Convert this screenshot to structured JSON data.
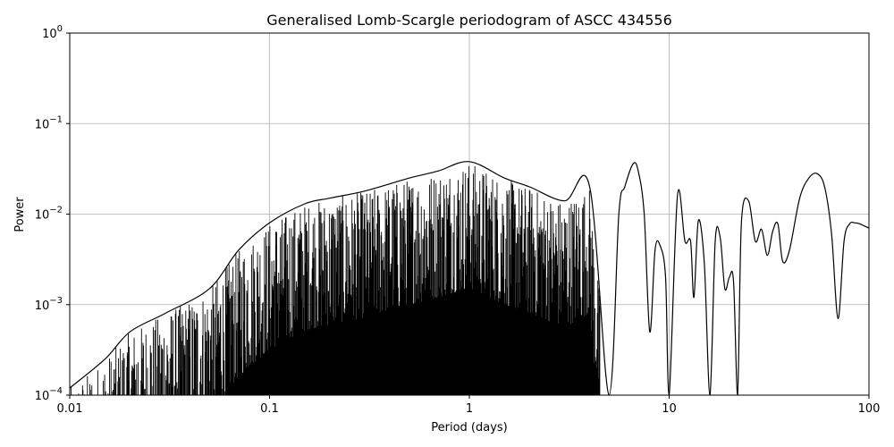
{
  "chart_data": {
    "type": "line",
    "title": "Generalised Lomb-Scargle periodogram of ASCC 434556",
    "xlabel": "Period (days)",
    "ylabel": "Power",
    "xscale": "log",
    "yscale": "log",
    "xlim": [
      0.01,
      100
    ],
    "ylim": [
      0.0001,
      1
    ],
    "grid": true,
    "line_color": "#000000",
    "x_ticks": [
      {
        "value": 0.01,
        "label": "0.01"
      },
      {
        "value": 0.1,
        "label": "0.1"
      },
      {
        "value": 1,
        "label": "1"
      },
      {
        "value": 10,
        "label": "10"
      },
      {
        "value": 100,
        "label": "100"
      }
    ],
    "y_ticks": [
      {
        "value": 0.0001,
        "base": "10",
        "exp": "−4"
      },
      {
        "value": 0.001,
        "base": "10",
        "exp": "−3"
      },
      {
        "value": 0.01,
        "base": "10",
        "exp": "−2"
      },
      {
        "value": 0.1,
        "base": "10",
        "exp": "−1"
      },
      {
        "value": 1,
        "base": "10",
        "exp": "0"
      }
    ],
    "x": [
      0.01,
      0.015,
      0.02,
      0.03,
      0.05,
      0.07,
      0.1,
      0.15,
      0.2,
      0.3,
      0.5,
      0.7,
      1.0,
      1.5,
      2.0,
      3.0,
      4.0,
      5.0,
      5.6,
      6.0,
      6.6,
      7.0,
      7.5,
      8.0,
      8.5,
      9.0,
      9.6,
      10.0,
      11.0,
      12.0,
      12.8,
      13.3,
      14.0,
      15.0,
      16.0,
      17.0,
      18.0,
      19.0,
      20.0,
      21.0,
      22.0,
      23.0,
      25.0,
      27.0,
      29.0,
      31.0,
      33.0,
      35.0,
      37.0,
      40.0,
      45.0,
      50.0,
      55.0,
      60.0,
      65.0,
      70.0,
      75.0,
      80.0,
      85.0,
      90.0,
      100.0
    ],
    "series": [
      {
        "envelope_values": [
          0.00012,
          0.00025,
          0.0005,
          0.0008,
          0.0015,
          0.004,
          0.008,
          0.013,
          0.015,
          0.018,
          0.025,
          0.03,
          0.038,
          0.025,
          0.02,
          0.014,
          0.02,
          0.0001,
          0.01,
          0.02,
          0.036,
          0.03,
          0.01,
          0.0005,
          0.004,
          0.0045,
          0.002,
          0.0001,
          0.016,
          0.005,
          0.005,
          0.0012,
          0.0085,
          0.0028,
          0.0001,
          0.005,
          0.0055,
          0.0015,
          0.002,
          0.0018,
          0.0001,
          0.008,
          0.014,
          0.005,
          0.0068,
          0.0035,
          0.0065,
          0.0078,
          0.003,
          0.004,
          0.015,
          0.025,
          0.028,
          0.02,
          0.006,
          0.0007,
          0.005,
          0.0078,
          0.008,
          0.0078,
          0.007
        ]
      }
    ]
  }
}
